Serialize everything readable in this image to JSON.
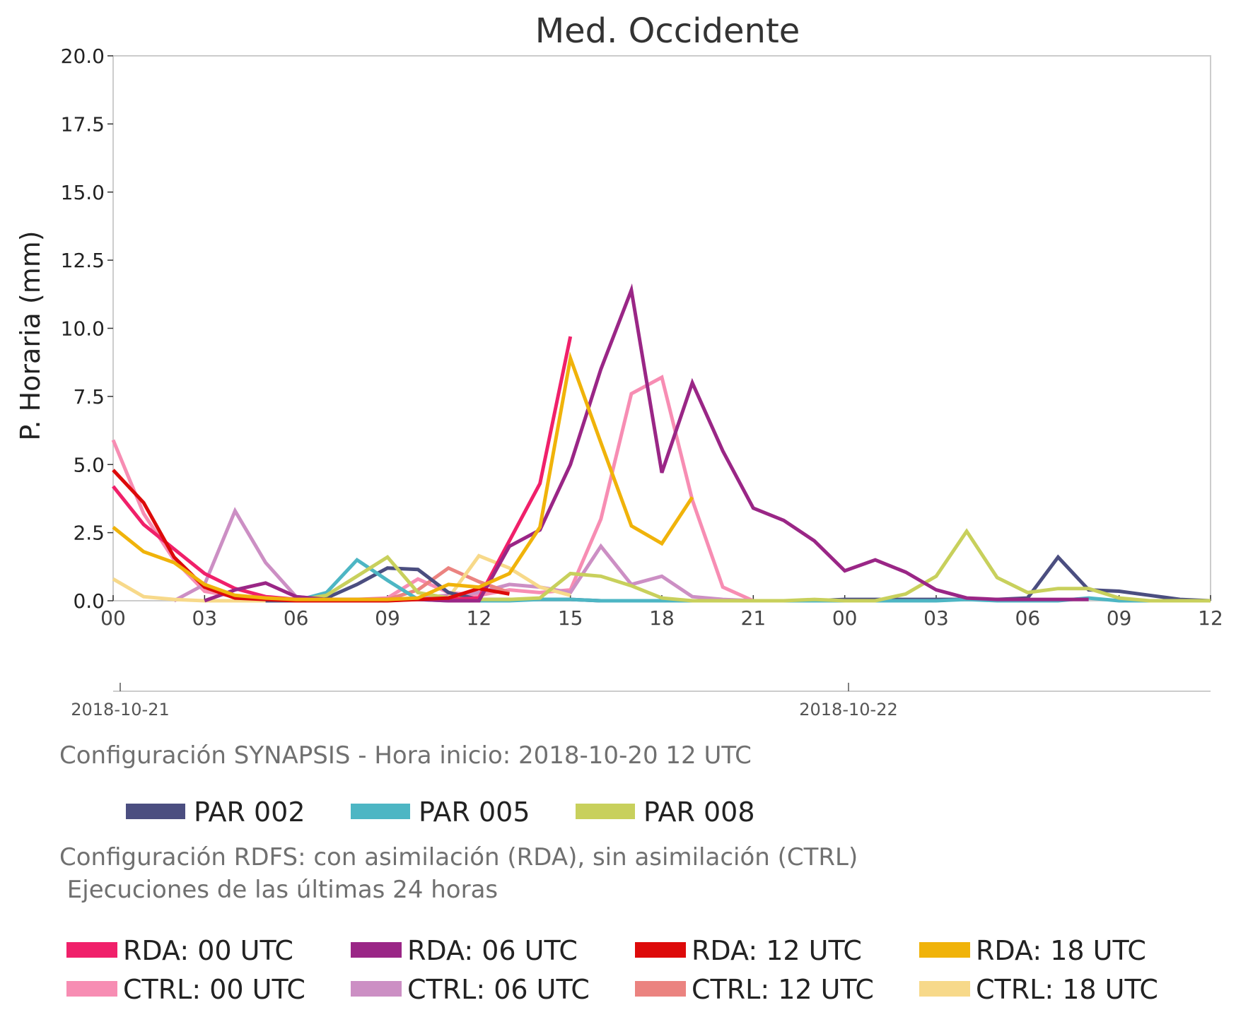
{
  "chart_data": {
    "type": "line",
    "title": "Med. Occidente",
    "ylabel": "P. Horaria (mm)",
    "xlabel": "",
    "ylim": [
      0,
      20
    ],
    "yticks": [
      "0.0",
      "2.5",
      "5.0",
      "7.5",
      "10.0",
      "12.5",
      "15.0",
      "17.5",
      "20.0"
    ],
    "x_unit": "hours since 2018-10-21 00 UTC",
    "xlim": [
      0,
      36
    ],
    "xtick_labels": [
      "00",
      "03",
      "06",
      "09",
      "12",
      "15",
      "18",
      "21",
      "00",
      "03",
      "06",
      "09",
      "12"
    ],
    "date_labels": [
      {
        "text": "2018-10-21",
        "hour": 0
      },
      {
        "text": "2018-10-22",
        "hour": 24
      }
    ],
    "grid": false,
    "synapsis_caption": "Configuración SYNAPSIS - Hora inicio: 2018-10-20 12 UTC",
    "rdfs_caption_line1": "Configuración RDFS: con asimilación (RDA), sin asimilación (CTRL)",
    "rdfs_caption_line2": " Ejecuciones de las últimas 24 horas",
    "series": [
      {
        "name": "CTRL: 00 UTC",
        "color": "#f78db3",
        "group": "rdfs",
        "x": [
          0,
          1,
          2,
          3,
          4,
          5,
          6,
          7,
          8,
          9,
          10,
          11,
          12,
          13,
          14,
          15,
          16,
          17,
          18,
          19,
          20,
          21
        ],
        "values": [
          5.9,
          3.2,
          1.5,
          0.35,
          0.15,
          0.1,
          0.05,
          0.05,
          0.05,
          0.1,
          0.8,
          0.3,
          0.2,
          0.4,
          0.3,
          0.4,
          3.0,
          7.6,
          8.2,
          3.7,
          0.5,
          0.0
        ]
      },
      {
        "name": "CTRL: 06 UTC",
        "color": "#cc8fc4",
        "group": "rdfs",
        "x": [
          2,
          3,
          4,
          5,
          6,
          7,
          8,
          9,
          10,
          11,
          12,
          13,
          14,
          15,
          16,
          17,
          18,
          19,
          20,
          21
        ],
        "values": [
          0.0,
          0.6,
          3.3,
          1.4,
          0.15,
          0.05,
          0.05,
          0.05,
          0.1,
          0.2,
          0.3,
          0.6,
          0.5,
          0.3,
          2.0,
          0.6,
          0.9,
          0.15,
          0.05,
          0.0
        ]
      },
      {
        "name": "CTRL: 12 UTC",
        "color": "#eb8380",
        "group": "rdfs",
        "x": [
          8,
          9,
          10,
          11,
          12,
          13
        ],
        "values": [
          0.0,
          0.05,
          0.4,
          1.2,
          0.7,
          0.3
        ]
      },
      {
        "name": "CTRL: 18 UTC",
        "color": "#f7d98a",
        "group": "rdfs",
        "x": [
          0,
          1,
          2,
          3,
          4,
          5,
          6,
          7,
          8,
          9,
          10,
          11,
          12,
          13,
          14,
          15
        ],
        "values": [
          0.8,
          0.15,
          0.05,
          0.0,
          0.0,
          0.0,
          0.0,
          0.0,
          0.0,
          0.0,
          0.05,
          0.1,
          1.65,
          1.2,
          0.5,
          0.2
        ]
      },
      {
        "name": "PAR 002",
        "color": "#4b4e80",
        "group": "synapsis",
        "x": [
          5,
          6,
          7,
          8,
          9,
          10,
          11,
          12,
          13,
          14,
          15,
          16,
          17,
          18,
          19,
          20,
          21,
          22,
          23,
          24,
          25,
          26,
          27,
          28,
          29,
          30,
          31,
          32,
          33,
          34,
          35,
          36
        ],
        "values": [
          0.0,
          0.0,
          0.1,
          0.6,
          1.2,
          1.15,
          0.3,
          0.05,
          0.05,
          0.05,
          0.05,
          0.0,
          0.0,
          0.0,
          0.0,
          0.0,
          0.0,
          0.0,
          0.0,
          0.05,
          0.05,
          0.05,
          0.05,
          0.05,
          0.05,
          0.1,
          1.6,
          0.4,
          0.35,
          0.2,
          0.05,
          0.0
        ]
      },
      {
        "name": "PAR 005",
        "color": "#4db6c4",
        "group": "synapsis",
        "x": [
          6,
          7,
          8,
          9,
          10,
          11,
          12,
          13,
          14,
          15,
          16,
          17,
          18,
          19,
          20,
          21,
          22,
          23,
          24,
          25,
          26,
          27,
          28,
          29,
          30,
          31,
          32,
          33,
          34,
          35,
          36
        ],
        "values": [
          0.0,
          0.3,
          1.5,
          0.75,
          0.05,
          0.0,
          0.0,
          0.0,
          0.05,
          0.05,
          0.0,
          0.0,
          0.0,
          0.0,
          0.0,
          0.0,
          0.0,
          0.0,
          0.0,
          0.0,
          0.0,
          0.0,
          0.05,
          0.0,
          0.0,
          0.0,
          0.1,
          0.0,
          0.0,
          0.0,
          0.0
        ]
      },
      {
        "name": "PAR 008",
        "color": "#c8d05c",
        "group": "synapsis",
        "x": [
          6,
          7,
          8,
          9,
          10,
          11,
          12,
          13,
          14,
          15,
          16,
          17,
          18,
          19,
          20,
          21,
          22,
          23,
          24,
          25,
          26,
          27,
          28,
          29,
          30,
          31,
          32,
          33,
          34,
          35,
          36
        ],
        "values": [
          0.0,
          0.2,
          0.9,
          1.6,
          0.3,
          0.1,
          0.05,
          0.05,
          0.1,
          1.0,
          0.9,
          0.55,
          0.1,
          0.0,
          0.0,
          0.0,
          0.0,
          0.05,
          0.0,
          0.0,
          0.25,
          0.9,
          2.55,
          0.85,
          0.3,
          0.45,
          0.45,
          0.1,
          0.0,
          0.0,
          0.0
        ]
      },
      {
        "name": "RDA: 00 UTC",
        "color": "#f0206a",
        "group": "rdfs",
        "x": [
          0,
          1,
          2,
          3,
          4,
          5,
          6,
          7,
          8,
          9,
          10,
          11,
          12,
          13,
          14,
          15
        ],
        "values": [
          4.2,
          2.8,
          1.9,
          1.0,
          0.45,
          0.15,
          0.05,
          0.05,
          0.05,
          0.05,
          0.05,
          0.05,
          0.1,
          2.2,
          4.3,
          9.7
        ]
      },
      {
        "name": "RDA: 06 UTC",
        "color": "#9a2686",
        "group": "rdfs",
        "x": [
          3,
          4,
          5,
          6,
          7,
          8,
          9,
          10,
          11,
          12,
          13,
          14,
          15,
          16,
          17,
          18,
          19,
          20,
          21,
          22,
          23,
          24,
          25,
          26,
          27,
          28,
          29,
          30,
          31,
          32
        ],
        "values": [
          0.0,
          0.4,
          0.65,
          0.15,
          0.05,
          0.05,
          0.05,
          0.05,
          0.0,
          0.0,
          2.0,
          2.6,
          5.0,
          8.5,
          11.4,
          4.7,
          8.0,
          5.5,
          3.4,
          2.95,
          2.2,
          1.1,
          1.5,
          1.05,
          0.4,
          0.1,
          0.05,
          0.05,
          0.05,
          0.05
        ]
      },
      {
        "name": "RDA: 12 UTC",
        "color": "#dd0a0a",
        "group": "rdfs",
        "x": [
          0,
          1,
          2,
          3,
          4,
          5,
          6,
          7,
          8,
          9,
          10,
          11,
          12,
          13
        ],
        "values": [
          4.8,
          3.6,
          1.6,
          0.5,
          0.1,
          0.05,
          0.0,
          0.0,
          0.0,
          0.0,
          0.05,
          0.1,
          0.45,
          0.25
        ]
      },
      {
        "name": "RDA: 18 UTC",
        "color": "#f0b30a",
        "group": "rdfs",
        "x": [
          0,
          1,
          2,
          3,
          4,
          5,
          6,
          7,
          8,
          9,
          10,
          11,
          12,
          13,
          14,
          15,
          16,
          17,
          18,
          19
        ],
        "values": [
          2.7,
          1.8,
          1.4,
          0.6,
          0.2,
          0.1,
          0.05,
          0.05,
          0.05,
          0.05,
          0.1,
          0.6,
          0.5,
          1.0,
          2.7,
          8.9,
          5.8,
          2.75,
          2.1,
          3.8
        ]
      }
    ],
    "legend_synapsis": [
      "PAR 002",
      "PAR 005",
      "PAR 008"
    ],
    "legend_rdfs": [
      "RDA: 00 UTC",
      "RDA: 06 UTC",
      "RDA: 12 UTC",
      "RDA: 18 UTC",
      "CTRL: 00 UTC",
      "CTRL: 06 UTC",
      "CTRL: 12 UTC",
      "CTRL: 18 UTC"
    ]
  }
}
